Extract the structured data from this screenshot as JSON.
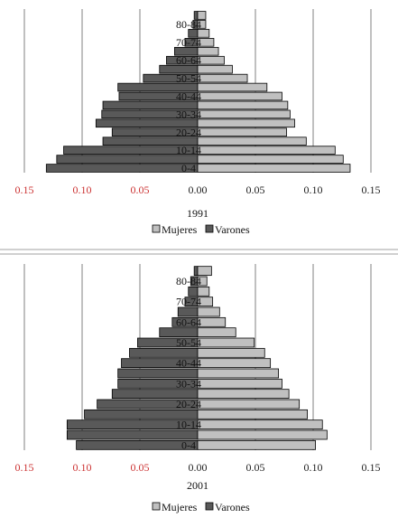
{
  "panels": [
    {
      "year": "1991",
      "type": "bar",
      "age_labels": [
        "0-4",
        "10-14",
        "20-24",
        "30-34",
        "40-44",
        "50-54",
        "60-64",
        "70-74",
        "80-84"
      ],
      "x_ticks": [
        "0.15",
        "0.10",
        "0.05",
        "0.00",
        "0.05",
        "0.10",
        "0.15"
      ],
      "series": [
        {
          "name": "Mujeres",
          "values": [
            0.132,
            0.126,
            0.119,
            0.094,
            0.077,
            0.084,
            0.08,
            0.078,
            0.073,
            0.06,
            0.043,
            0.03,
            0.023,
            0.018,
            0.014,
            0.01,
            0.007,
            0.007
          ]
        },
        {
          "name": "Varones",
          "values": [
            0.131,
            0.122,
            0.116,
            0.082,
            0.074,
            0.088,
            0.083,
            0.082,
            0.068,
            0.069,
            0.047,
            0.033,
            0.027,
            0.02,
            0.011,
            0.008,
            0.004,
            0.003
          ]
        }
      ]
    },
    {
      "year": "2001",
      "type": "bar",
      "age_labels": [
        "0-4",
        "10-14",
        "20-24",
        "30-34",
        "40-44",
        "50-54",
        "60-64",
        "70-74",
        "80-84"
      ],
      "x_ticks": [
        "0.15",
        "0.10",
        "0.05",
        "0.00",
        "0.05",
        "0.10",
        "0.15"
      ],
      "series": [
        {
          "name": "Mujeres",
          "values": [
            0.102,
            0.112,
            0.108,
            0.095,
            0.088,
            0.079,
            0.073,
            0.07,
            0.063,
            0.058,
            0.049,
            0.033,
            0.024,
            0.019,
            0.013,
            0.01,
            0.008,
            0.012
          ]
        },
        {
          "name": "Varones",
          "values": [
            0.105,
            0.113,
            0.113,
            0.098,
            0.087,
            0.074,
            0.069,
            0.069,
            0.066,
            0.059,
            0.052,
            0.033,
            0.022,
            0.017,
            0.011,
            0.008,
            0.006,
            0.003
          ]
        }
      ]
    }
  ],
  "legend": {
    "mujeres": "Mujeres",
    "varones": "Varones"
  },
  "colors": {
    "mujeres": "#c0c0c0",
    "varones": "#595959",
    "tick_negative": "#cc3333",
    "tick_positive": "#222222",
    "grid": "#808080",
    "separator": "#a0a0a0"
  }
}
